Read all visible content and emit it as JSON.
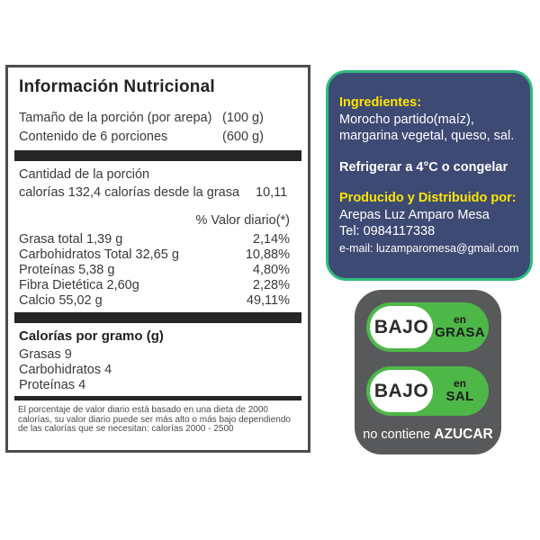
{
  "colors": {
    "panel_border": "#4d4d4f",
    "bar_black": "#262626",
    "info_box_fill": "#3d4a74",
    "info_box_border": "#2ebc7c",
    "accent_yellow": "#ffe500",
    "pill_green": "#4db848",
    "claims_box_gray": "#58595b"
  },
  "nutrition_panel": {
    "title": "Información Nutricional",
    "serving_rows": [
      {
        "label": "Tamaño de la porción (por arepa)",
        "value": "(100 g)"
      },
      {
        "label": "Contenido de 6 porciones",
        "value": "(600 g)"
      }
    ],
    "amount_heading": "Cantidad de la porción",
    "calories_line": {
      "label": "calorías 132,4 calorías desde la grasa",
      "value": "10,11"
    },
    "daily_value_heading": "% Valor diario(*)",
    "nutrients": [
      {
        "label": "Grasa total 1,39 g",
        "percent": "2,14%"
      },
      {
        "label": "Carbohidratos Total 32,65 g",
        "percent": "10,88%"
      },
      {
        "label": "Proteínas 5,38 g",
        "percent": "4,80%"
      },
      {
        "label": "Fibra Dietética 2,60g",
        "percent": "2,28%"
      },
      {
        "label": "Calcio 55,02 g",
        "percent": "49,11%"
      }
    ],
    "calories_per_gram": {
      "heading": "Calorías por gramo (g)",
      "rows": [
        "Grasas 9",
        "Carbohidratos 4",
        "Proteínas 4"
      ]
    },
    "footnote": "El porcentaje de valor diario está basado en una dieta de 2000 calorías, su valor diario puede ser más alto o más bajo dependiendo de las calorías que se necesitan: calorías 2000 - 2500"
  },
  "info_box": {
    "ingredients_heading": "Ingredientes:",
    "ingredients_lines": [
      "Morocho partido(maíz),",
      "margarina vegetal, queso, sal."
    ],
    "storage_line": "Refrigerar a 4°C o congelar",
    "producer_heading": "Producido y Distribuido por:",
    "producer_name": "Arepas Luz Amparo Mesa",
    "phone": "Tel: 0984117338",
    "email": "e-mail: luzamparomesa@gmail.com"
  },
  "claims_box": {
    "badges": [
      {
        "big": "BAJO",
        "small_top": "en",
        "small_bottom": "GRASA"
      },
      {
        "big": "BAJO",
        "small_top": "en",
        "small_bottom": "SAL"
      }
    ],
    "no_sugar": {
      "prefix": "no contiene ",
      "bold": "AZUCAR"
    }
  }
}
